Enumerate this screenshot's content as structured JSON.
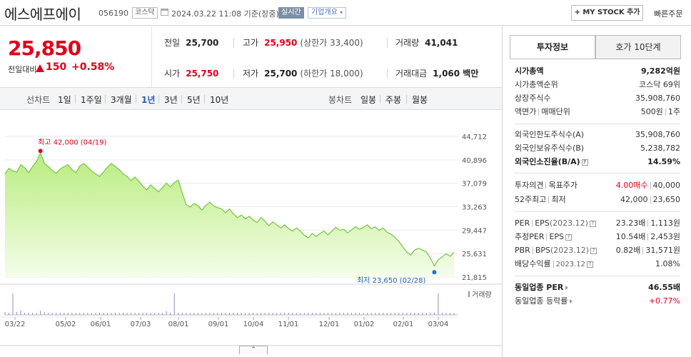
{
  "header": {
    "title": "에스에프에이",
    "code": "056190",
    "market": "코스닥",
    "datetime": "2024.03.22 11:08 기준(장중)",
    "realtime": "실시간",
    "company_btn": "기업개요",
    "mystock_btn": "+ MY STOCK 추가",
    "quick_order": "빠른주문"
  },
  "price": {
    "current": "25,850",
    "change_label": "전일대비",
    "change": "150",
    "change_pct": "+0.58%"
  },
  "stats": {
    "prev_label": "전일",
    "prev": "25,700",
    "high_label": "고가",
    "high": "25,950",
    "upper_limit": "(상한가 33,400)",
    "volume_label": "거래량",
    "volume": "41,041",
    "open_label": "시가",
    "open": "25,750",
    "low_label": "저가",
    "low": "25,700",
    "lower_limit": "(하한가 18,000)",
    "amount_label": "거래대금",
    "amount": "1,060 백만"
  },
  "period_bar": {
    "line_label": "선차트",
    "periods": [
      "1일",
      "1주일",
      "3개월",
      "1년",
      "3년",
      "5년",
      "10년"
    ],
    "active": "1년",
    "candle_label": "봉차트",
    "candles": [
      "일봉",
      "주봉",
      "월봉"
    ]
  },
  "chart_data": {
    "type": "area",
    "x_ticks": [
      "03/22",
      "05/02",
      "06/01",
      "07/03",
      "08/01",
      "09/01",
      "10/04",
      "11/01",
      "12/01",
      "01/02",
      "02/01",
      "03/04"
    ],
    "y_ticks": [
      44712,
      40896,
      37079,
      33263,
      29447,
      25631,
      21815
    ],
    "ylim": [
      21815,
      44712
    ],
    "values": [
      38600,
      39500,
      39100,
      38900,
      40100,
      39600,
      38800,
      39800,
      40600,
      42000,
      40300,
      39800,
      39200,
      38700,
      39400,
      39800,
      40100,
      39300,
      38800,
      39900,
      40300,
      39700,
      39100,
      38600,
      38200,
      38900,
      39700,
      40300,
      39800,
      39300,
      38600,
      38200,
      37500,
      38100,
      37400,
      36600,
      36000,
      36800,
      36200,
      35700,
      36400,
      37100,
      36500,
      37200,
      37600,
      35500,
      33600,
      33200,
      33800,
      33400,
      32700,
      33500,
      34000,
      33400,
      33100,
      32900,
      32300,
      32900,
      32100,
      31500,
      31900,
      31300,
      31700,
      31100,
      30700,
      31500,
      30900,
      30200,
      30800,
      30300,
      29800,
      30300,
      29700,
      29300,
      29800,
      29300,
      28600,
      28200,
      28900,
      28400,
      28900,
      29300,
      28700,
      29300,
      29900,
      29400,
      29600,
      29000,
      29500,
      30000,
      29600,
      29900,
      30300,
      29700,
      30000,
      29400,
      29800,
      29100,
      28800,
      28300,
      27600,
      26700,
      25900,
      25400,
      26200,
      26500,
      26200,
      25900,
      24900,
      23650,
      24600,
      25100,
      25600,
      25200,
      25850
    ],
    "max_label": "최고 42,000 (04/19)",
    "min_label": "최저 23,650 (02/28)",
    "max_index": 9,
    "min_index": 109,
    "volume_label": "거래량",
    "volume": [
      4,
      3,
      3,
      4,
      6,
      3,
      3,
      3,
      3,
      6,
      4,
      3,
      3,
      3,
      3,
      3,
      3,
      3,
      3,
      3,
      3,
      3,
      3,
      3,
      3,
      3,
      3,
      3,
      3,
      3,
      3,
      3,
      3,
      3,
      3,
      3,
      3,
      3,
      3,
      3,
      3,
      5,
      3,
      3,
      3,
      3,
      3,
      3,
      3,
      3,
      3,
      3,
      3,
      3,
      3,
      3,
      3,
      3,
      3,
      3,
      3,
      3,
      3,
      3,
      3,
      3,
      3,
      3,
      3,
      3,
      3,
      3,
      3,
      3,
      3,
      3,
      3,
      3,
      3,
      3,
      3,
      3,
      3,
      3,
      3,
      3,
      3,
      3,
      3,
      3,
      3,
      3,
      3,
      3,
      3,
      3,
      3,
      3,
      3,
      3,
      3,
      3,
      3,
      3,
      3,
      3,
      3,
      3,
      3,
      3,
      3,
      3,
      3,
      3,
      3
    ],
    "volume_spikes": {
      "2": 30,
      "43": 30,
      "110": 30
    }
  },
  "right_panel": {
    "tab_active": "투자정보",
    "tab_inactive": "호가 10단계",
    "market_cap_label": "시가총액",
    "market_cap": "9,282억원",
    "rank_label": "시가총액순위",
    "rank": "코스닥 69위",
    "shares_label": "상장주식수",
    "shares": "35,908,760",
    "par_label": "액면가",
    "unit_label": "매매단위",
    "par": "500원",
    "unit": "1주",
    "foreign_limit_label": "외국인한도주식수(A)",
    "foreign_limit": "35,908,760",
    "foreign_hold_label": "외국인보유주식수(B)",
    "foreign_hold": "5,238,782",
    "foreign_ratio_label": "외국인소진율(B/A)",
    "foreign_ratio": "14.59%",
    "opinion_label": "투자의견",
    "target_label": "목표주가",
    "opinion": "4.00매수",
    "target": "40,000",
    "w52_label": "52주최고",
    "w52_low_label": "최저",
    "w52_high": "42,000",
    "w52_low": "23,650",
    "per_label": "PER",
    "eps_label": "EPS",
    "eps_year": "(2023.12)",
    "per": "23.23배",
    "eps": "1,113원",
    "fper_label": "추정PER",
    "feps_label": "EPS",
    "fper": "10.54배",
    "feps": "2,453원",
    "pbr_label": "PBR",
    "bps_label": "BPS",
    "bps_year": "(2023.12)",
    "pbr": "0.82배",
    "bps": "31,571원",
    "div_label": "배당수익률",
    "div_year": "2023.12",
    "div": "1.08%",
    "sector_per_label": "동일업종 PER",
    "sector_per": "46.55배",
    "sector_rate_label": "동일업종 등락률",
    "sector_rate": "+0.77%"
  }
}
